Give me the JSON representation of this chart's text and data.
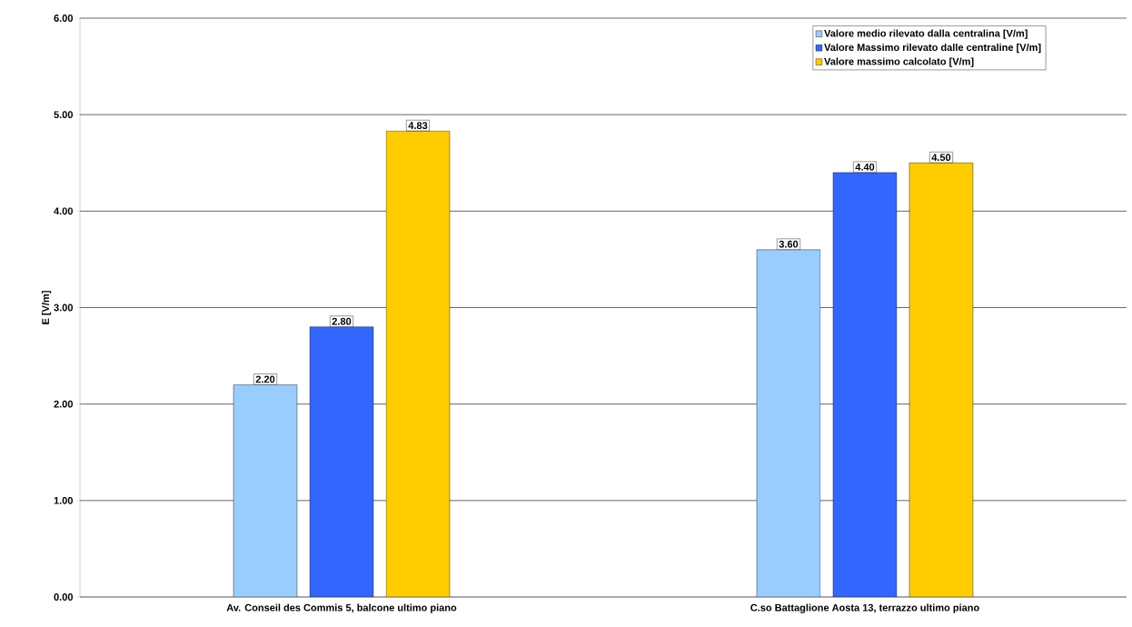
{
  "chart_data": {
    "type": "bar",
    "ylabel": "E [V/m]",
    "categories": [
      "Av. Conseil des Commis 5, balcone ultimo piano",
      "C.so Battaglione Aosta 13, terrazzo ultimo piano"
    ],
    "series": [
      {
        "name": "Valore medio rilevato dalla centralina [V/m]",
        "color": "#99ccff",
        "values": [
          2.2,
          3.6
        ],
        "value_labels": [
          "2.20",
          "3.60"
        ]
      },
      {
        "name": "Valore Massimo rilevato dalle centraline [V/m]",
        "color": "#3366ff",
        "values": [
          2.8,
          4.4
        ],
        "value_labels": [
          "2.80",
          "4.40"
        ]
      },
      {
        "name": "Valore massimo calcolato [V/m]",
        "color": "#ffcc00",
        "values": [
          4.83,
          4.5
        ],
        "value_labels": [
          "4.83",
          "4.50"
        ]
      }
    ],
    "ylim": [
      0,
      6
    ],
    "yticks": [
      {
        "value": 0,
        "label": "0.00"
      },
      {
        "value": 1,
        "label": "1.00"
      },
      {
        "value": 2,
        "label": "2.00"
      },
      {
        "value": 3,
        "label": "3.00"
      },
      {
        "value": 4,
        "label": "4.00"
      },
      {
        "value": 5,
        "label": "5.00"
      },
      {
        "value": 6,
        "label": "6.00"
      }
    ],
    "grid": "y",
    "legend": "top right"
  }
}
